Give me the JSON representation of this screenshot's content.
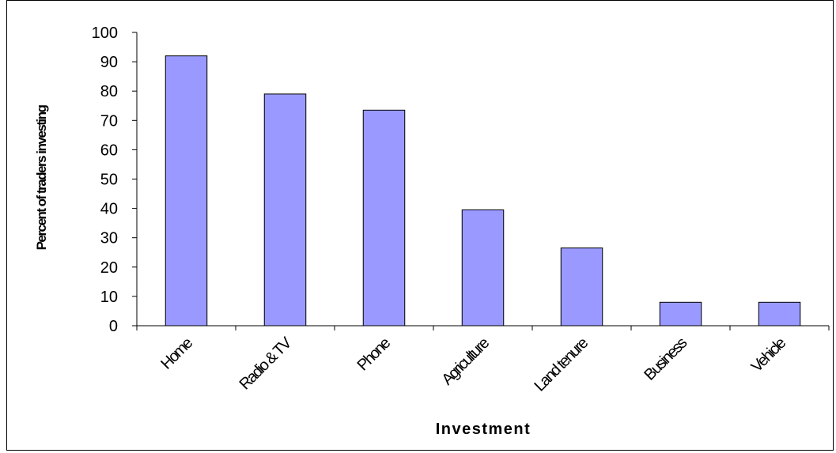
{
  "chart_data": {
    "type": "bar",
    "title": "",
    "xlabel": "Investment",
    "ylabel": "Percent of traders investing",
    "categories": [
      "Home",
      "Radio & TV",
      "Phone",
      "Agriculture",
      "Land tenure",
      "Business",
      "Vehicle"
    ],
    "values": [
      92,
      79,
      73.5,
      39.5,
      26.5,
      8,
      8
    ],
    "ylim": [
      0,
      100
    ],
    "yticks": [
      "0",
      "10",
      "20",
      "30",
      "40",
      "50",
      "60",
      "70",
      "80",
      "90",
      "100"
    ],
    "grid": false,
    "legend": "none",
    "bar_color": "#9999ff",
    "bar_edge_color": "#000000"
  }
}
